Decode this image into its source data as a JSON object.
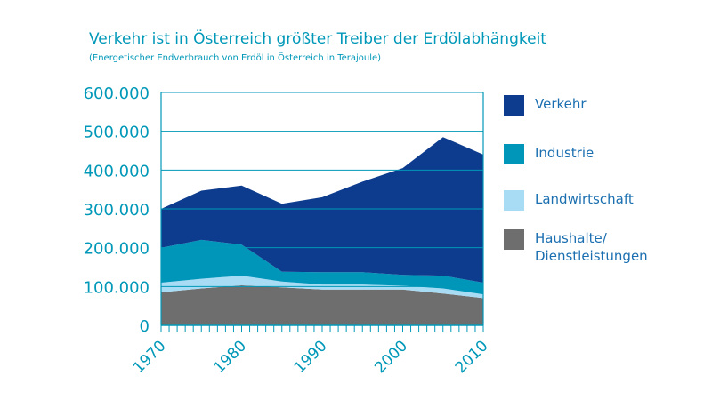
{
  "chart_data": {
    "type": "area",
    "stacked": true,
    "title": "Verkehr ist in Österreich größter Treiber der Erdölabhängkeit",
    "subtitle": "(Energetischer Endverbrauch von Erdöl in Österreich in Terajoule)",
    "x": [
      1970,
      1975,
      1980,
      1985,
      1990,
      1995,
      2000,
      2005,
      2010
    ],
    "x_tick_labels": [
      "1970",
      "1980",
      "1990",
      "2000",
      "2010"
    ],
    "x_ticks": [
      1970,
      1980,
      1990,
      2000,
      2010
    ],
    "ylim": [
      0,
      600000
    ],
    "y_ticks": [
      0,
      100000,
      200000,
      300000,
      400000,
      500000,
      600000
    ],
    "y_tick_labels": [
      "0",
      "100.000",
      "200.000",
      "300.000",
      "400.000",
      "500.000",
      "600.000"
    ],
    "grid": "horizontal",
    "legend_position": "right",
    "series": [
      {
        "name": "Haushalte/ Dienstleistungen",
        "color": "#6e6e6e",
        "values": [
          85000,
          95000,
          103000,
          98000,
          92000,
          92000,
          92000,
          82000,
          70000
        ]
      },
      {
        "name": "Landwirtschaft",
        "color": "#a8dcf5",
        "values": [
          25000,
          25000,
          25000,
          15000,
          13000,
          13000,
          10000,
          13000,
          10000
        ]
      },
      {
        "name": "Industrie",
        "color": "#0096b9",
        "values": [
          90000,
          100000,
          80000,
          25000,
          32000,
          32000,
          28000,
          33000,
          30000
        ]
      },
      {
        "name": "Verkehr",
        "color": "#0d3c8e",
        "values": [
          100000,
          127000,
          152000,
          175000,
          193000,
          233000,
          275000,
          357000,
          330000
        ]
      }
    ]
  },
  "legend": [
    {
      "lines": [
        "Verkehr"
      ],
      "color": "#0d3c8e"
    },
    {
      "lines": [
        "Industrie"
      ],
      "color": "#0096b9"
    },
    {
      "lines": [
        "Landwirtschaft"
      ],
      "color": "#a8dcf5"
    },
    {
      "lines": [
        "Haushalte/",
        "Dienstleistungen"
      ],
      "color": "#6e6e6e"
    }
  ]
}
